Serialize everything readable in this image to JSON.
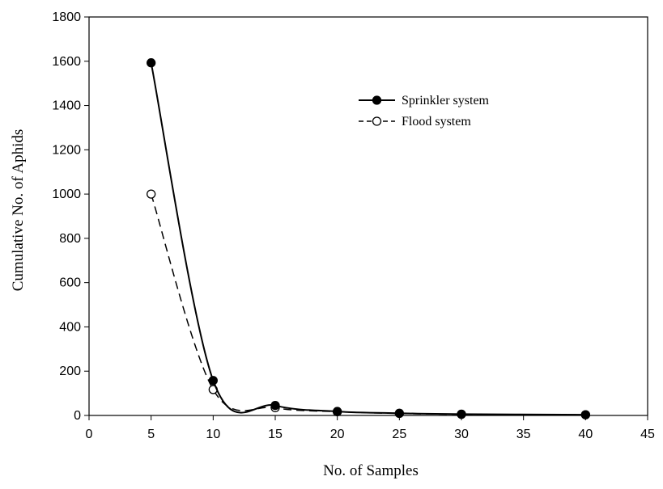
{
  "chart_data": {
    "type": "line",
    "title": "",
    "xlabel": "No. of Samples",
    "ylabel": "Cumulative No. of Aphids",
    "xlim": [
      0,
      45
    ],
    "ylim": [
      0,
      1800
    ],
    "xticks": [
      0,
      5,
      10,
      15,
      20,
      25,
      30,
      35,
      40,
      45
    ],
    "yticks": [
      0,
      200,
      400,
      600,
      800,
      1000,
      1200,
      1400,
      1600,
      1800
    ],
    "grid": false,
    "legend_position": "top-right",
    "series": [
      {
        "name": "Sprinkler system",
        "line_style": "solid",
        "marker": "filled-circle",
        "color": "#000000",
        "x": [
          5,
          10,
          15,
          20,
          25,
          30,
          40
        ],
        "y": [
          1593,
          158,
          45,
          18,
          10,
          6,
          3
        ]
      },
      {
        "name": "Flood system",
        "line_style": "dashed",
        "marker": "open-circle",
        "color": "#000000",
        "x": [
          5,
          10,
          15,
          20,
          25,
          30,
          40
        ],
        "y": [
          1000,
          117,
          35,
          17,
          9,
          5,
          3
        ]
      }
    ]
  }
}
